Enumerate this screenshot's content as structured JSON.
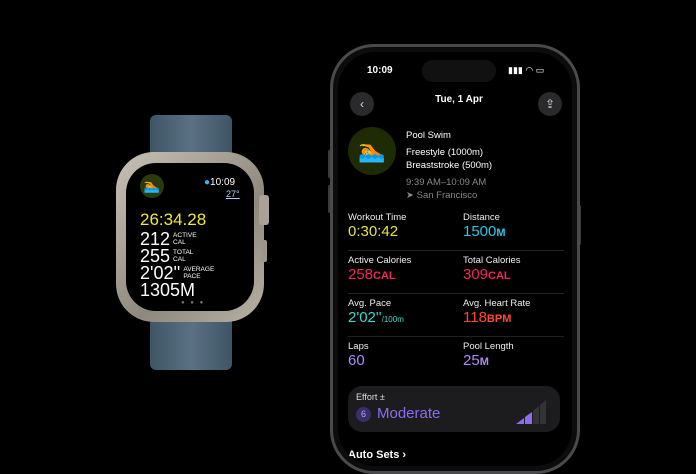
{
  "watch": {
    "time": "10:09",
    "temperature": "27°",
    "elapsed": "26:34.28",
    "metrics": [
      {
        "value": "212",
        "label1": "ACTIVE",
        "label2": "CAL"
      },
      {
        "value": "255",
        "label1": "TOTAL",
        "label2": "CAL"
      },
      {
        "value": "2'02''",
        "label1": "AVERAGE",
        "label2": "PACE"
      },
      {
        "value": "1305M",
        "label1": "",
        "label2": ""
      }
    ],
    "page_dots": "● ● ●"
  },
  "phone": {
    "status_time": "10:09",
    "status_icons": "▮▮▮ ◠ ▭",
    "date": "Tue, 1 Apr",
    "back_icon": "‹",
    "share_icon": "⇪",
    "workout": {
      "title": "Pool Swim",
      "strokes": [
        "Freestyle (1000m)",
        "Breaststroke (500m)"
      ],
      "time_range": "9:39 AM–10:09 AM",
      "location": "San Francisco"
    },
    "metrics": [
      {
        "label": "Workout Time",
        "value": "0:30:42",
        "unit": "",
        "color": "#e6e53a"
      },
      {
        "label": "Distance",
        "value": "1500",
        "unit": "M",
        "color": "#2ec4e6"
      },
      {
        "label": "Active Calories",
        "value": "258",
        "unit": "CAL",
        "color": "#f2275b"
      },
      {
        "label": "Total Calories",
        "value": "309",
        "unit": "CAL",
        "color": "#f2275b"
      },
      {
        "label": "Avg. Pace",
        "value": "2'02''",
        "unit": "/100m",
        "color": "#3ed8d0"
      },
      {
        "label": "Avg. Heart Rate",
        "value": "118",
        "unit": "BPM",
        "color": "#ff4a2e"
      },
      {
        "label": "Laps",
        "value": "60",
        "unit": "",
        "color": "#a98cf5"
      },
      {
        "label": "Pool Length",
        "value": "25",
        "unit": "M",
        "color": "#a98cf5"
      }
    ],
    "effort": {
      "label": "Effort",
      "plusminus": "±",
      "score": "6",
      "level": "Moderate",
      "level_fraction": 0.6,
      "color": "#8e6cf0"
    },
    "auto_sets": "Auto Sets ›"
  }
}
